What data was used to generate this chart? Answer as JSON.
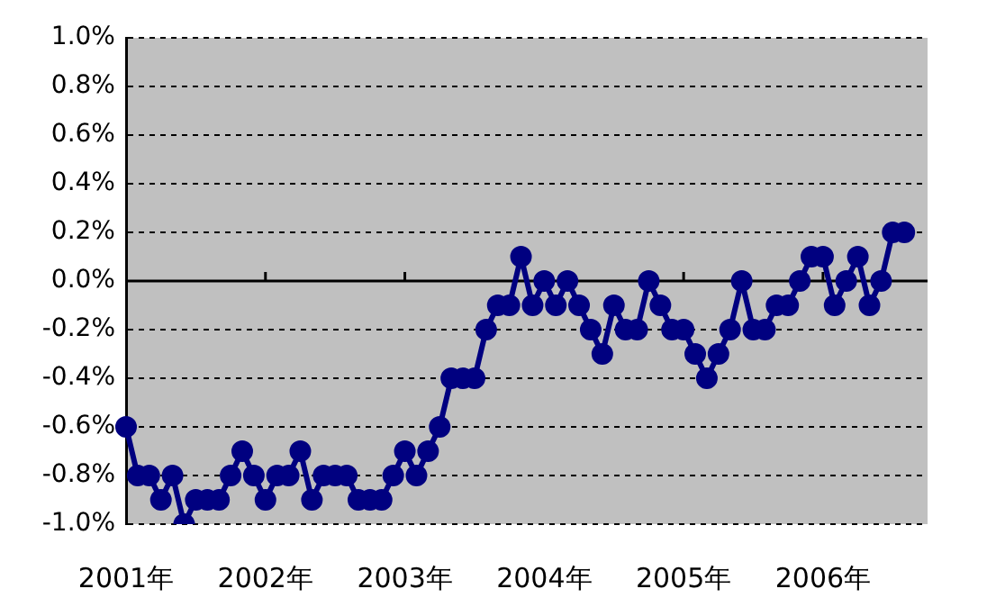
{
  "chart_data": {
    "type": "line",
    "categories": [
      "2001年",
      null,
      null,
      null,
      null,
      null,
      null,
      null,
      null,
      null,
      null,
      null,
      "2002年",
      null,
      null,
      null,
      null,
      null,
      null,
      null,
      null,
      null,
      null,
      null,
      "2003年",
      null,
      null,
      null,
      null,
      null,
      null,
      null,
      null,
      null,
      null,
      null,
      "2004年",
      null,
      null,
      null,
      null,
      null,
      null,
      null,
      null,
      null,
      null,
      null,
      "2005年",
      null,
      null,
      null,
      null,
      null,
      null,
      null,
      null,
      null,
      null,
      null,
      "2006年",
      null,
      null,
      null,
      null,
      null,
      null,
      null,
      null,
      null
    ],
    "series": [
      {
        "color": "#000080",
        "values": [
          -0.6,
          -0.8,
          -0.8,
          -0.9,
          -0.8,
          -1.0,
          -0.9,
          -0.9,
          -0.9,
          -0.8,
          -0.7,
          -0.8,
          -0.9,
          -0.8,
          -0.8,
          -0.7,
          -0.9,
          -0.8,
          -0.8,
          -0.8,
          -0.9,
          -0.9,
          -0.9,
          -0.8,
          -0.7,
          -0.8,
          -0.7,
          -0.6,
          -0.4,
          -0.4,
          -0.4,
          -0.2,
          -0.1,
          -0.1,
          0.1,
          -0.1,
          0.0,
          -0.1,
          0.0,
          -0.1,
          -0.2,
          -0.3,
          -0.1,
          -0.2,
          -0.2,
          0.0,
          -0.1,
          -0.2,
          -0.2,
          -0.3,
          -0.4,
          -0.3,
          -0.2,
          0.0,
          -0.2,
          -0.2,
          -0.1,
          -0.1,
          0.0,
          0.1,
          0.1,
          -0.1,
          0.0,
          0.1,
          -0.1,
          0.0,
          0.2,
          0.2,
          null,
          null
        ]
      }
    ],
    "ylim": [
      -1.0,
      1.0
    ],
    "yticks": [
      {
        "value": -1.0,
        "label": "-1.0%"
      },
      {
        "value": -0.8,
        "label": "-0.8%"
      },
      {
        "value": -0.6,
        "label": "-0.6%"
      },
      {
        "value": -0.4,
        "label": "-0.4%"
      },
      {
        "value": -0.2,
        "label": "-0.2%"
      },
      {
        "value": 0.0,
        "label": "0.0%"
      },
      {
        "value": 0.2,
        "label": "0.2%"
      },
      {
        "value": 0.4,
        "label": "0.4%"
      },
      {
        "value": 0.6,
        "label": "0.6%"
      },
      {
        "value": 0.8,
        "label": "0.8%"
      },
      {
        "value": 1.0,
        "label": "1.0%"
      }
    ],
    "grid": "y",
    "legend": false,
    "marker": "circle",
    "line_style": "solid"
  }
}
